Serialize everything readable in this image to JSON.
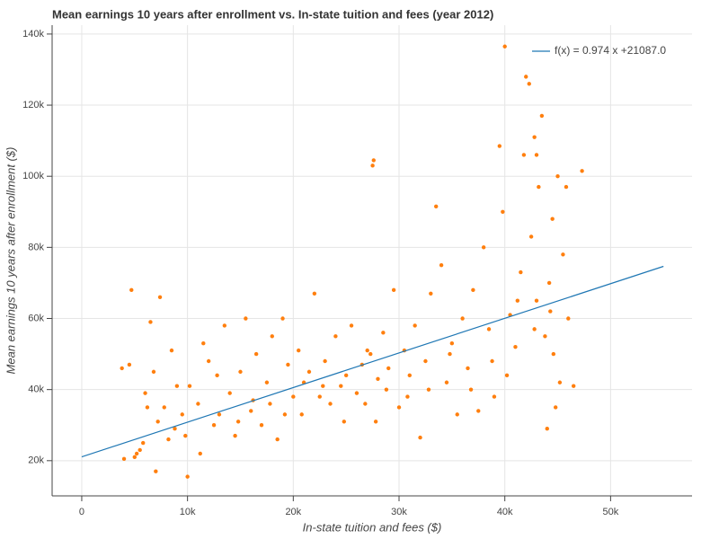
{
  "chart_data": {
    "type": "scatter",
    "title": "Mean earnings 10 years after enrollment vs. In-state tuition and fees (year 2012)",
    "x_label": "In-state tuition and fees ($)",
    "y_label": "Mean earnings 10 years after enrollment ($)",
    "xlim": [
      -2800,
      57700
    ],
    "ylim": [
      10100,
      142500
    ],
    "xticks": [
      {
        "value": 0,
        "label": "0"
      },
      {
        "value": 10000,
        "label": "10k"
      },
      {
        "value": 20000,
        "label": "20k"
      },
      {
        "value": 30000,
        "label": "30k"
      },
      {
        "value": 40000,
        "label": "40k"
      },
      {
        "value": 50000,
        "label": "50k"
      }
    ],
    "yticks": [
      {
        "value": 20000,
        "label": "20k"
      },
      {
        "value": 40000,
        "label": "40k"
      },
      {
        "value": 60000,
        "label": "60k"
      },
      {
        "value": 80000,
        "label": "80k"
      },
      {
        "value": 100000,
        "label": "100k"
      },
      {
        "value": 120000,
        "label": "120k"
      },
      {
        "value": 140000,
        "label": "140k"
      }
    ],
    "grid": true,
    "legend": "top-right",
    "series": [
      {
        "type": "scatter",
        "color": "#ff7f0e",
        "x": [
          3800,
          4500,
          4700,
          5000,
          5200,
          5500,
          6000,
          6200,
          6500,
          7000,
          7200,
          7400,
          7800,
          8200,
          8500,
          9000,
          9500,
          10000,
          10200,
          9800,
          4000,
          5800,
          6800,
          8800,
          11000,
          11500,
          12000,
          12500,
          13000,
          13500,
          14000,
          14500,
          15000,
          15500,
          16000,
          16500,
          17000,
          17500,
          18000,
          18500,
          19000,
          19500,
          20000,
          11200,
          12800,
          14800,
          16200,
          17800,
          19200,
          20500,
          21000,
          21500,
          22000,
          22500,
          23000,
          23500,
          24000,
          24500,
          25000,
          25500,
          26000,
          26500,
          27000,
          27300,
          27500,
          27600,
          27800,
          28000,
          28500,
          29000,
          29500,
          30000,
          20800,
          22800,
          24800,
          26800,
          28800,
          30500,
          31000,
          31500,
          32000,
          32500,
          33000,
          33500,
          34000,
          34500,
          35000,
          35500,
          36000,
          36500,
          37000,
          37500,
          38000,
          38500,
          39000,
          39500,
          39800,
          40000,
          30800,
          32800,
          34800,
          36800,
          38800,
          40500,
          41000,
          41500,
          42000,
          42300,
          42500,
          42800,
          43000,
          43200,
          43500,
          43800,
          44000,
          44200,
          44500,
          44800,
          45000,
          45500,
          45800,
          46000,
          46500,
          47300,
          41800,
          43000,
          44300,
          44600,
          45200,
          40200,
          41200,
          42800
        ],
        "values": [
          46000,
          47000,
          68000,
          21000,
          22000,
          23000,
          39000,
          35000,
          59000,
          17000,
          31000,
          66000,
          35000,
          26000,
          51000,
          41000,
          33000,
          15500,
          41000,
          27000,
          20500,
          25000,
          45000,
          29000,
          36000,
          53000,
          48000,
          30000,
          33000,
          58000,
          39000,
          27000,
          45000,
          60000,
          34000,
          50000,
          30000,
          42000,
          55000,
          26000,
          60000,
          47000,
          38000,
          22000,
          44000,
          31000,
          37000,
          36000,
          33000,
          51000,
          42000,
          45000,
          67000,
          38000,
          48000,
          36000,
          55000,
          41000,
          44000,
          58000,
          39000,
          47000,
          51000,
          50000,
          103000,
          104500,
          31000,
          43000,
          56000,
          46000,
          68000,
          35000,
          33000,
          41000,
          31000,
          36000,
          40000,
          51000,
          44000,
          58000,
          26500,
          48000,
          67000,
          91500,
          75000,
          42000,
          53000,
          33000,
          60000,
          46000,
          68000,
          34000,
          80000,
          57000,
          38000,
          108500,
          90000,
          136500,
          38000,
          40000,
          50000,
          40000,
          48000,
          61000,
          52000,
          73000,
          128000,
          126000,
          83000,
          111000,
          65000,
          97000,
          117000,
          55000,
          29000,
          70000,
          88000,
          35000,
          100000,
          78000,
          97000,
          60000,
          41000,
          101500,
          106000,
          106000,
          62000,
          50000,
          42000,
          44000,
          65000,
          57000
        ]
      },
      {
        "type": "line",
        "name": "f(x) = 0.974 x +21087.0",
        "color": "#1f77b4",
        "x": [
          0,
          55000
        ],
        "values": [
          21087,
          74657
        ]
      }
    ]
  }
}
